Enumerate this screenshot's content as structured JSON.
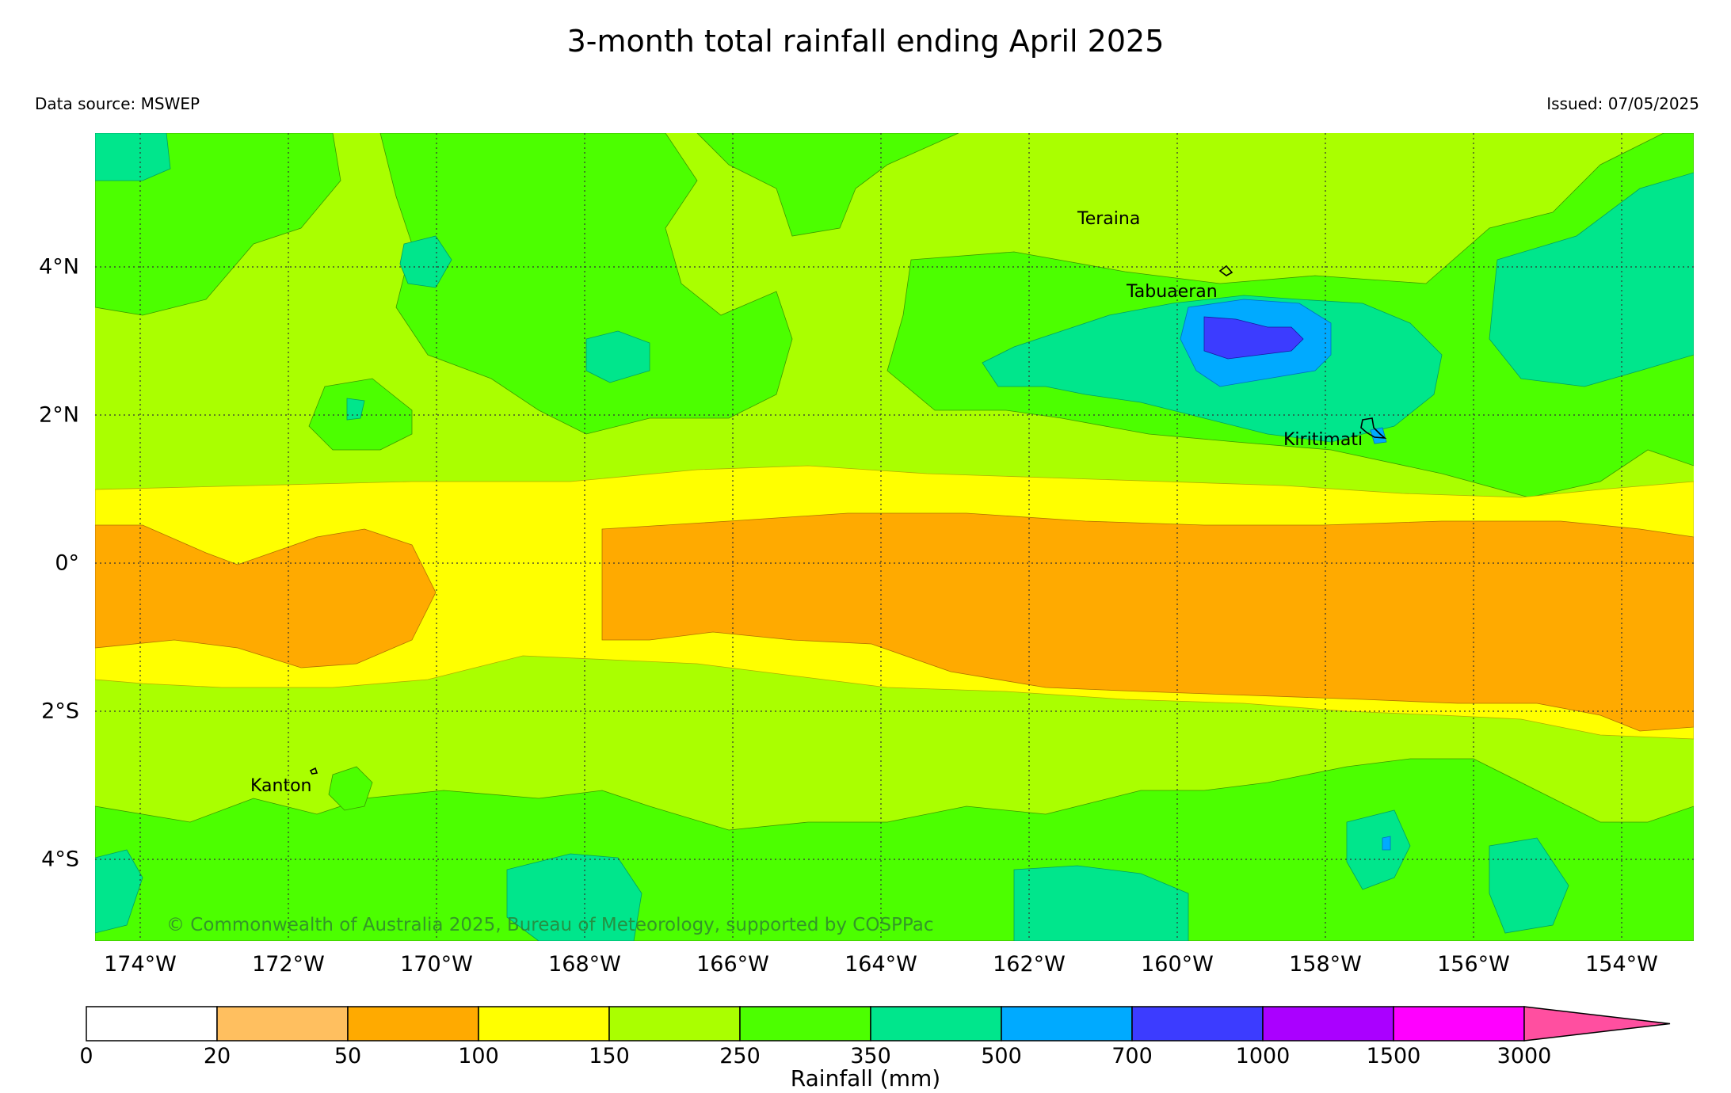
{
  "title": "3-month total rainfall ending April 2025",
  "data_source": "Data source: MSWEP",
  "issued": "Issued: 07/05/2025",
  "copyright": "© Commonwealth of Australia 2025, Bureau of Meteorology, supported by COSPPac",
  "x_ticks": [
    "174°W",
    "172°W",
    "170°W",
    "168°W",
    "166°W",
    "164°W",
    "162°W",
    "160°W",
    "158°W",
    "156°W",
    "154°W"
  ],
  "y_ticks": [
    "4°N",
    "2°N",
    "0°",
    "2°S",
    "4°S"
  ],
  "places": [
    "Teraina",
    "Tabuaeran",
    "Kiritimati",
    "Kanton"
  ],
  "colorbar": {
    "label": "Rainfall (mm)",
    "ticks": [
      "0",
      "20",
      "50",
      "100",
      "150",
      "250",
      "350",
      "500",
      "700",
      "1000",
      "1500",
      "3000"
    ],
    "colors": [
      "#ffffff",
      "#ffbf5f",
      "#ffaa00",
      "#ffff00",
      "#aaff00",
      "#4cff00",
      "#00e68c",
      "#00aaff",
      "#3c3cff",
      "#aa00ff",
      "#ff00ff",
      "#ff4fa0"
    ]
  },
  "colors": {
    "r20_50": "#ffbf5f",
    "r50_100": "#ffaa00",
    "r100_150": "#ffff00",
    "r150_250": "#aaff00",
    "r250_350": "#4cff00",
    "r350_500": "#00e68c",
    "r500_700": "#00aaff",
    "r700_1000": "#3c3cff"
  }
}
